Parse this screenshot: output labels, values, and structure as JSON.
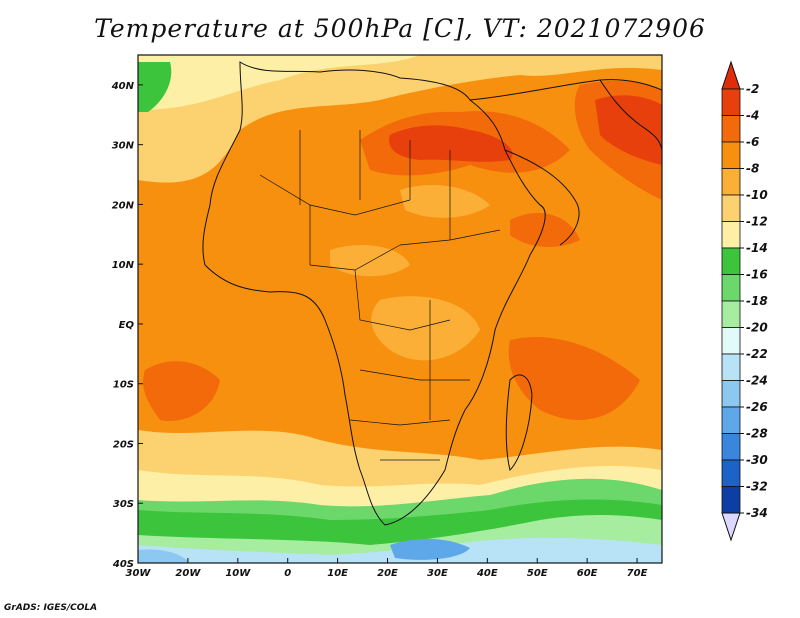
{
  "title": "Temperature at 500hPa [C], VT: 2021072906",
  "footer": "GrADS: IGES/COLA",
  "map": {
    "lon_range": [
      -30,
      75
    ],
    "lat_range": [
      -40,
      45
    ],
    "lat_labels": [
      "40N",
      "30N",
      "20N",
      "10N",
      "EQ",
      "10S",
      "20S",
      "30S",
      "40S"
    ],
    "lat_values": [
      40,
      30,
      20,
      10,
      0,
      -10,
      -20,
      -30,
      -40
    ],
    "lon_labels": [
      "30W",
      "20W",
      "10W",
      "0",
      "10E",
      "20E",
      "30E",
      "40E",
      "50E",
      "60E",
      "70E"
    ],
    "lon_values": [
      -30,
      -20,
      -10,
      0,
      10,
      20,
      30,
      40,
      50,
      60,
      70
    ]
  },
  "colorbar": {
    "labels": [
      "-2",
      "-4",
      "-6",
      "-8",
      "-10",
      "-12",
      "-14",
      "-16",
      "-18",
      "-20",
      "-22",
      "-24",
      "-26",
      "-28",
      "-30",
      "-32",
      "-34"
    ],
    "colors": [
      "#e8400c",
      "#f26a0a",
      "#f7900f",
      "#fbaf36",
      "#fcd270",
      "#fdf0a6",
      "#3cc43c",
      "#6cd86c",
      "#a6eda0",
      "#e2fbf8",
      "#b8e2f6",
      "#8cc8f0",
      "#5ea8ea",
      "#3a86dc",
      "#1c62c8",
      "#0c3ea6",
      "#0a1c78",
      "#dcd8ff"
    ],
    "top_color": "#e02c0a",
    "bottom_color": "#dcd8ff"
  }
}
